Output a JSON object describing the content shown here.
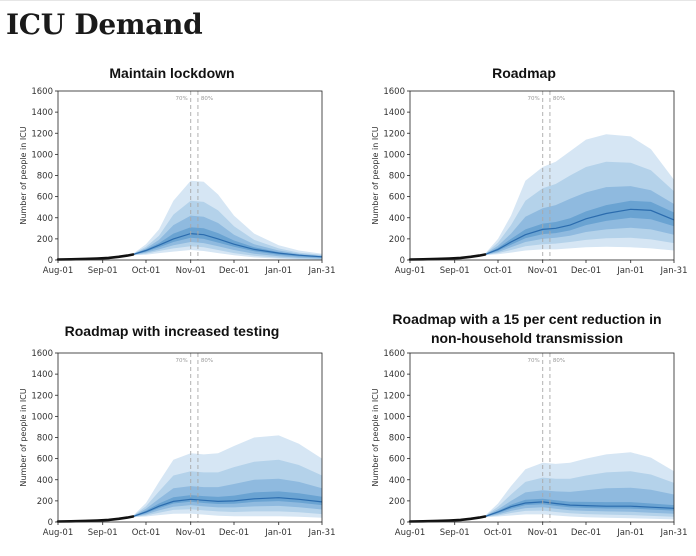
{
  "page": {
    "title": "ICU Demand"
  },
  "chart_data": [
    {
      "type": "area",
      "title": "Maintain lockdown",
      "ylabel": "Number of people in ICU",
      "xlabel": "",
      "ylim": [
        0,
        1600
      ],
      "yticks": [
        0,
        200,
        400,
        600,
        800,
        1000,
        1200,
        1400,
        1600
      ],
      "xticks": [
        "Aug-01",
        "Sep-01",
        "Oct-01",
        "Nov-01",
        "Dec-01",
        "Jan-01",
        "Jan-31"
      ],
      "grid": false,
      "vlines": [
        {
          "x": "Nov-01",
          "label": "70%"
        },
        {
          "x": "Nov-06",
          "label": "80%"
        }
      ],
      "observed": {
        "x": [
          "Aug-01",
          "Aug-10",
          "Aug-20",
          "Aug-28",
          "Sep-05",
          "Sep-12",
          "Sep-18",
          "Sep-22"
        ],
        "y": [
          5,
          7,
          10,
          14,
          20,
          30,
          42,
          52
        ]
      },
      "x": [
        "Sep-22",
        "Oct-01",
        "Oct-10",
        "Oct-20",
        "Nov-01",
        "Nov-10",
        "Nov-20",
        "Dec-01",
        "Dec-15",
        "Jan-01",
        "Jan-15",
        "Jan-31"
      ],
      "median": [
        52,
        90,
        140,
        200,
        250,
        240,
        200,
        150,
        100,
        65,
        45,
        30
      ],
      "bands": [
        {
          "lower": [
            45,
            50,
            65,
            80,
            95,
            85,
            65,
            45,
            25,
            12,
            6,
            3
          ],
          "upper": [
            60,
            150,
            290,
            560,
            750,
            740,
            620,
            420,
            250,
            140,
            90,
            60
          ]
        },
        {
          "lower": [
            47,
            60,
            85,
            110,
            130,
            120,
            95,
            65,
            40,
            22,
            12,
            7
          ],
          "upper": [
            58,
            125,
            230,
            430,
            560,
            550,
            470,
            320,
            190,
            110,
            70,
            48
          ]
        },
        {
          "lower": [
            48,
            70,
            100,
            140,
            170,
            160,
            130,
            95,
            60,
            35,
            22,
            14
          ],
          "upper": [
            57,
            110,
            190,
            330,
            420,
            410,
            350,
            240,
            150,
            90,
            58,
            40
          ]
        },
        {
          "lower": [
            50,
            80,
            120,
            170,
            210,
            200,
            165,
            125,
            82,
            50,
            33,
            22
          ],
          "upper": [
            55,
            100,
            160,
            250,
            310,
            300,
            255,
            185,
            120,
            75,
            50,
            35
          ]
        }
      ]
    },
    {
      "type": "area",
      "title": "Roadmap",
      "ylabel": "Number of people in ICU",
      "xlabel": "",
      "ylim": [
        0,
        1600
      ],
      "yticks": [
        0,
        200,
        400,
        600,
        800,
        1000,
        1200,
        1400,
        1600
      ],
      "xticks": [
        "Aug-01",
        "Sep-01",
        "Oct-01",
        "Nov-01",
        "Dec-01",
        "Jan-01",
        "Jan-31"
      ],
      "grid": false,
      "vlines": [
        {
          "x": "Nov-01",
          "label": "70%"
        },
        {
          "x": "Nov-06",
          "label": "80%"
        }
      ],
      "observed": {
        "x": [
          "Aug-01",
          "Aug-10",
          "Aug-20",
          "Aug-28",
          "Sep-05",
          "Sep-12",
          "Sep-18",
          "Sep-22"
        ],
        "y": [
          5,
          7,
          10,
          14,
          20,
          30,
          42,
          52
        ]
      },
      "x": [
        "Sep-22",
        "Oct-01",
        "Oct-10",
        "Oct-20",
        "Nov-01",
        "Nov-10",
        "Nov-20",
        "Dec-01",
        "Dec-15",
        "Jan-01",
        "Jan-15",
        "Jan-31"
      ],
      "median": [
        52,
        100,
        170,
        240,
        290,
        300,
        330,
        390,
        440,
        480,
        470,
        380
      ],
      "bands": [
        {
          "lower": [
            45,
            55,
            70,
            90,
            100,
            100,
            110,
            120,
            125,
            120,
            110,
            90
          ],
          "upper": [
            60,
            200,
            420,
            750,
            880,
            930,
            1030,
            1140,
            1190,
            1170,
            1050,
            760
          ]
        },
        {
          "lower": [
            47,
            65,
            95,
            130,
            150,
            155,
            170,
            190,
            205,
            210,
            195,
            160
          ],
          "upper": [
            58,
            165,
            330,
            560,
            680,
            720,
            800,
            880,
            930,
            920,
            850,
            650
          ]
        },
        {
          "lower": [
            48,
            75,
            120,
            170,
            200,
            210,
            230,
            265,
            290,
            305,
            290,
            240
          ],
          "upper": [
            57,
            135,
            250,
            410,
            490,
            520,
            580,
            640,
            690,
            700,
            660,
            530
          ]
        },
        {
          "lower": [
            50,
            88,
            145,
            205,
            245,
            255,
            280,
            330,
            370,
            400,
            385,
            320
          ],
          "upper": [
            55,
            115,
            200,
            290,
            345,
            360,
            395,
            460,
            520,
            560,
            550,
            450
          ]
        }
      ]
    },
    {
      "type": "area",
      "title": "Roadmap with increased testing",
      "ylabel": "Number of people in ICU",
      "xlabel": "",
      "ylim": [
        0,
        1600
      ],
      "yticks": [
        0,
        200,
        400,
        600,
        800,
        1000,
        1200,
        1400,
        1600
      ],
      "xticks": [
        "Aug-01",
        "Sep-01",
        "Oct-01",
        "Nov-01",
        "Dec-01",
        "Jan-01",
        "Jan-31"
      ],
      "grid": false,
      "vlines": [
        {
          "x": "Nov-01",
          "label": "70%"
        },
        {
          "x": "Nov-06",
          "label": "80%"
        }
      ],
      "observed": {
        "x": [
          "Aug-01",
          "Aug-10",
          "Aug-20",
          "Aug-28",
          "Sep-05",
          "Sep-12",
          "Sep-18",
          "Sep-22"
        ],
        "y": [
          5,
          7,
          10,
          14,
          20,
          30,
          42,
          52
        ]
      },
      "x": [
        "Sep-22",
        "Oct-01",
        "Oct-10",
        "Oct-20",
        "Nov-01",
        "Nov-10",
        "Nov-20",
        "Dec-01",
        "Dec-15",
        "Jan-01",
        "Jan-15",
        "Jan-31"
      ],
      "median": [
        52,
        95,
        150,
        195,
        215,
        205,
        195,
        200,
        220,
        230,
        215,
        190
      ],
      "bands": [
        {
          "lower": [
            45,
            52,
            65,
            78,
            80,
            70,
            60,
            55,
            55,
            55,
            50,
            40
          ],
          "upper": [
            60,
            180,
            380,
            590,
            650,
            640,
            650,
            720,
            800,
            820,
            740,
            600
          ]
        },
        {
          "lower": [
            47,
            62,
            88,
            115,
            120,
            110,
            100,
            95,
            100,
            100,
            92,
            75
          ],
          "upper": [
            58,
            150,
            290,
            440,
            480,
            470,
            470,
            520,
            570,
            590,
            540,
            440
          ]
        },
        {
          "lower": [
            48,
            72,
            110,
            145,
            160,
            148,
            138,
            138,
            148,
            152,
            140,
            118
          ],
          "upper": [
            57,
            125,
            220,
            320,
            340,
            330,
            330,
            360,
            400,
            410,
            380,
            320
          ]
        },
        {
          "lower": [
            50,
            84,
            132,
            175,
            192,
            180,
            170,
            172,
            190,
            198,
            184,
            160
          ],
          "upper": [
            55,
            108,
            175,
            235,
            255,
            245,
            238,
            250,
            280,
            290,
            272,
            240
          ]
        }
      ]
    },
    {
      "type": "area",
      "title": "Roadmap with a 15 per cent reduction in non-household transmission",
      "ylabel": "Number of people in ICU",
      "xlabel": "",
      "ylim": [
        0,
        1600
      ],
      "yticks": [
        0,
        200,
        400,
        600,
        800,
        1000,
        1200,
        1400,
        1600
      ],
      "xticks": [
        "Aug-01",
        "Sep-01",
        "Oct-01",
        "Nov-01",
        "Dec-01",
        "Jan-01",
        "Jan-31"
      ],
      "grid": false,
      "vlines": [
        {
          "x": "Nov-01",
          "label": "70%"
        },
        {
          "x": "Nov-06",
          "label": "80%"
        }
      ],
      "observed": {
        "x": [
          "Aug-01",
          "Aug-10",
          "Aug-20",
          "Aug-28",
          "Sep-05",
          "Sep-12",
          "Sep-18",
          "Sep-22"
        ],
        "y": [
          5,
          7,
          10,
          14,
          20,
          30,
          42,
          52
        ]
      },
      "x": [
        "Sep-22",
        "Oct-01",
        "Oct-10",
        "Oct-20",
        "Nov-01",
        "Nov-10",
        "Nov-20",
        "Dec-01",
        "Dec-15",
        "Jan-01",
        "Jan-15",
        "Jan-31"
      ],
      "median": [
        52,
        95,
        145,
        180,
        190,
        175,
        160,
        155,
        150,
        150,
        140,
        130
      ],
      "bands": [
        {
          "lower": [
            45,
            52,
            62,
            72,
            72,
            62,
            52,
            45,
            40,
            35,
            30,
            25
          ],
          "upper": [
            60,
            175,
            340,
            500,
            560,
            550,
            560,
            600,
            640,
            660,
            610,
            480
          ]
        },
        {
          "lower": [
            47,
            62,
            85,
            105,
            108,
            95,
            83,
            75,
            70,
            65,
            58,
            50
          ],
          "upper": [
            58,
            145,
            260,
            380,
            420,
            410,
            410,
            440,
            470,
            480,
            450,
            370
          ]
        },
        {
          "lower": [
            48,
            72,
            105,
            132,
            140,
            125,
            112,
            105,
            100,
            97,
            88,
            78
          ],
          "upper": [
            57,
            120,
            200,
            280,
            300,
            290,
            285,
            300,
            320,
            325,
            305,
            260
          ]
        },
        {
          "lower": [
            50,
            84,
            126,
            160,
            168,
            152,
            138,
            133,
            128,
            127,
            118,
            108
          ],
          "upper": [
            55,
            105,
            165,
            210,
            220,
            205,
            192,
            190,
            188,
            188,
            175,
            160
          ]
        }
      ]
    }
  ]
}
